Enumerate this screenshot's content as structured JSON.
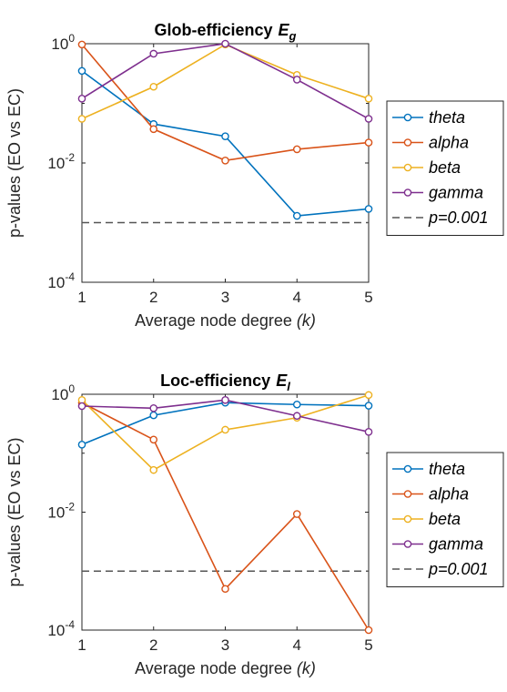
{
  "chart_data": [
    {
      "type": "line",
      "title": "Glob-efficiency",
      "title_symbol": "E",
      "title_subscript": "g",
      "xlabel": "Average node degree",
      "xlabel_symbol": "(k)",
      "ylabel": "p-values (EO vs EC)",
      "yscale": "log",
      "ylim": [
        0.0001,
        1
      ],
      "yticks": [
        {
          "base": "10",
          "exp": "0"
        },
        {
          "base": "10",
          "exp": "-2"
        },
        {
          "base": "10",
          "exp": "-4"
        }
      ],
      "xlim": [
        1,
        5
      ],
      "x": [
        1,
        2,
        3,
        4,
        5
      ],
      "xticks": [
        "1",
        "2",
        "3",
        "4",
        "5"
      ],
      "grid": false,
      "legend_position": "outside-right",
      "series": [
        {
          "name": "theta",
          "color": "#0072BD",
          "values": [
            0.35,
            0.045,
            0.028,
            0.0013,
            0.0017
          ]
        },
        {
          "name": "alpha",
          "color": "#D95319",
          "values": [
            0.97,
            0.037,
            0.011,
            0.017,
            0.022
          ]
        },
        {
          "name": "beta",
          "color": "#EDB120",
          "values": [
            0.055,
            0.19,
            0.97,
            0.3,
            0.12
          ]
        },
        {
          "name": "gamma",
          "color": "#7E2F8E",
          "values": [
            0.12,
            0.68,
            1.0,
            0.25,
            0.055
          ]
        }
      ],
      "reference_line": {
        "name": "p=0.001",
        "value": 0.001,
        "color": "#555555",
        "style": "dashed"
      }
    },
    {
      "type": "line",
      "title": "Loc-efficiency",
      "title_symbol": "E",
      "title_subscript": "l",
      "xlabel": "Average node degree",
      "xlabel_symbol": "(k)",
      "ylabel": "p-values (EO vs EC)",
      "yscale": "log",
      "ylim": [
        0.0001,
        1
      ],
      "yticks": [
        {
          "base": "10",
          "exp": "0"
        },
        {
          "base": "10",
          "exp": "-2"
        },
        {
          "base": "10",
          "exp": "-4"
        }
      ],
      "xlim": [
        1,
        5
      ],
      "x": [
        1,
        2,
        3,
        4,
        5
      ],
      "xticks": [
        "1",
        "2",
        "3",
        "4",
        "5"
      ],
      "grid": false,
      "legend_position": "outside-right",
      "series": [
        {
          "name": "theta",
          "color": "#0072BD",
          "values": [
            0.14,
            0.44,
            0.72,
            0.67,
            0.64
          ]
        },
        {
          "name": "alpha",
          "color": "#D95319",
          "values": [
            0.72,
            0.17,
            0.0005,
            0.0093,
            0.0001
          ]
        },
        {
          "name": "beta",
          "color": "#EDB120",
          "values": [
            0.8,
            0.052,
            0.25,
            0.4,
            0.97
          ]
        },
        {
          "name": "gamma",
          "color": "#7E2F8E",
          "values": [
            0.63,
            0.58,
            0.8,
            0.43,
            0.23
          ]
        }
      ],
      "reference_line": {
        "name": "p=0.001",
        "value": 0.001,
        "color": "#555555",
        "style": "dashed"
      }
    }
  ]
}
